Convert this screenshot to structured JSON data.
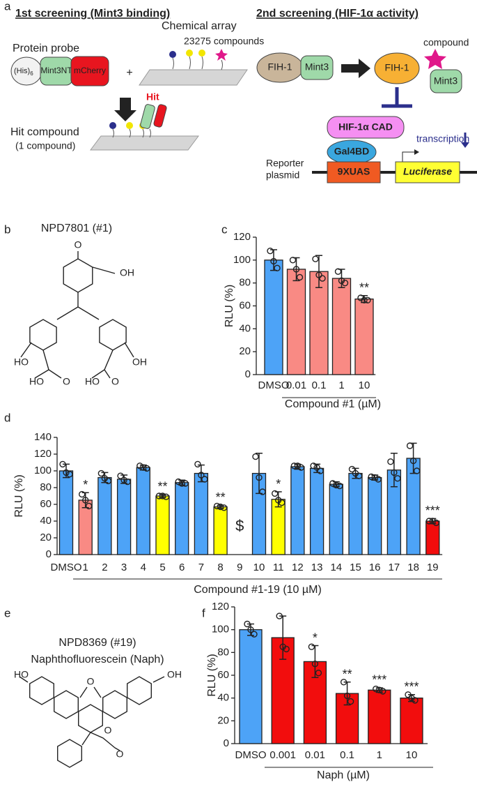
{
  "panel_labels": [
    "a",
    "b",
    "c",
    "d",
    "e",
    "f"
  ],
  "screen1": {
    "title": "1st screening (Mint3 binding)",
    "probe_label": "Protein probe",
    "his": "(His)",
    "his_sub": "6",
    "mint3nt": "Mint3NT",
    "mcherry": "mCherry",
    "plus": "+",
    "array_label": "Chemical array",
    "compounds": "23275 compounds",
    "hit": "Hit",
    "hit_compound": "Hit compound",
    "hit_count": "(1 compound)"
  },
  "screen2": {
    "title": "2nd screening (HIF-1α activity)",
    "fih1": "FIH-1",
    "mint3": "Mint3",
    "fih1_b": "FIH-1",
    "mint3_b": "Mint3",
    "compound": "compound",
    "hif": "HIF-1α CAD",
    "gal4bd": "Gal4BD",
    "transcription": "transcription",
    "reporter": [
      "Reporter",
      "plasmid"
    ],
    "uas": "9XUAS",
    "luciferase": "Luciferase"
  },
  "structure_b": {
    "name": "NPD7801 (#1)",
    "atoms": [
      "O",
      "OH",
      "HO",
      "OH",
      "HO",
      "O",
      "HO",
      "O"
    ]
  },
  "structure_e": {
    "name": [
      "NPD8369 (#19)",
      "Naphthofluorescein (Naph)"
    ],
    "atoms": [
      "HO",
      "OH",
      "O",
      "O",
      "O"
    ]
  },
  "chart_data": [
    {
      "type": "bar",
      "categories": [
        "DMSO",
        "0.01",
        "0.1",
        "1",
        "10"
      ],
      "values": [
        100,
        92,
        90,
        84,
        66
      ],
      "errors": [
        9,
        10,
        14,
        8,
        3
      ],
      "points": [
        [
          108,
          99,
          93
        ],
        [
          100,
          92,
          85
        ],
        [
          101,
          87,
          84
        ],
        [
          90,
          82,
          80
        ],
        [
          67,
          65,
          65
        ]
      ],
      "colors": [
        "#4da3f7",
        "#f98a84",
        "#f98a84",
        "#f98a84",
        "#f98a84"
      ],
      "significance": [
        null,
        null,
        null,
        null,
        "**"
      ],
      "ylim": [
        0,
        120
      ],
      "yticks": [
        0,
        20,
        40,
        60,
        80,
        100,
        120
      ],
      "ylabel": "RLU (%)",
      "xlabel": "Compound #1 (µM)"
    },
    {
      "type": "bar",
      "categories": [
        "DMSO",
        "1",
        "2",
        "3",
        "4",
        "5",
        "6",
        "7",
        "8",
        "9",
        "10",
        "11",
        "12",
        "13",
        "14",
        "15",
        "16",
        "17",
        "18",
        "19"
      ],
      "values": [
        100,
        65,
        92,
        90,
        104,
        70,
        86,
        97,
        57,
        null,
        97,
        66,
        105,
        103,
        84,
        97,
        92,
        101,
        115,
        40
      ],
      "errors": [
        8,
        9,
        6,
        5,
        3,
        2,
        3,
        10,
        2,
        null,
        24,
        9,
        3,
        5,
        3,
        6,
        3,
        20,
        18,
        3
      ],
      "points": [
        [
          108,
          98,
          96
        ],
        [
          72,
          65,
          58
        ],
        [
          97,
          91,
          88
        ],
        [
          94,
          89,
          87
        ],
        [
          106,
          104,
          103
        ],
        [
          70,
          70,
          69
        ],
        [
          87,
          85,
          85
        ],
        [
          108,
          95,
          90
        ],
        [
          58,
          57,
          56
        ],
        null,
        [
          117,
          92,
          75
        ],
        [
          73,
          65,
          62
        ],
        [
          106,
          106,
          104
        ],
        [
          106,
          104,
          100
        ],
        [
          85,
          83,
          82
        ],
        [
          102,
          97,
          94
        ],
        [
          93,
          92,
          90
        ],
        [
          111,
          98,
          91
        ],
        [
          130,
          112,
          100
        ],
        [
          40,
          40,
          38
        ]
      ],
      "colors": [
        "#4da3f7",
        "#f98a84",
        "#4da3f7",
        "#4da3f7",
        "#4da3f7",
        "#ffff00",
        "#4da3f7",
        "#4da3f7",
        "#ffff00",
        "#4da3f7",
        "#4da3f7",
        "#ffff00",
        "#4da3f7",
        "#4da3f7",
        "#4da3f7",
        "#4da3f7",
        "#4da3f7",
        "#4da3f7",
        "#4da3f7",
        "#f20d0d"
      ],
      "significance": [
        null,
        "*",
        null,
        null,
        null,
        "**",
        null,
        null,
        "**",
        "$",
        null,
        "*",
        null,
        null,
        null,
        null,
        null,
        null,
        null,
        "***"
      ],
      "ylim": [
        0,
        140
      ],
      "yticks": [
        0,
        20,
        40,
        60,
        80,
        100,
        120,
        140
      ],
      "ylabel": "RLU (%)",
      "xlabel": "Compound #1-19 (10 µM)"
    },
    {
      "type": "bar",
      "categories": [
        "DMSO",
        "0.001",
        "0.01",
        "0.1",
        "1",
        "10"
      ],
      "values": [
        100,
        93,
        72,
        44,
        47,
        40
      ],
      "errors": [
        5,
        19,
        14,
        10,
        2,
        3
      ],
      "points": [
        [
          105,
          100,
          96
        ],
        [
          112,
          85,
          83
        ],
        [
          85,
          70,
          62
        ],
        [
          54,
          42,
          37
        ],
        [
          48,
          47,
          46
        ],
        [
          43,
          40,
          38
        ]
      ],
      "colors": [
        "#4da3f7",
        "#f20d0d",
        "#f20d0d",
        "#f20d0d",
        "#f20d0d",
        "#f20d0d"
      ],
      "significance": [
        null,
        null,
        "*",
        "**",
        "***",
        "***"
      ],
      "ylim": [
        0,
        120
      ],
      "yticks": [
        0,
        20,
        40,
        60,
        80,
        100,
        120
      ],
      "ylabel": "RLU (%)",
      "xlabel": "Naph (µM)"
    }
  ]
}
